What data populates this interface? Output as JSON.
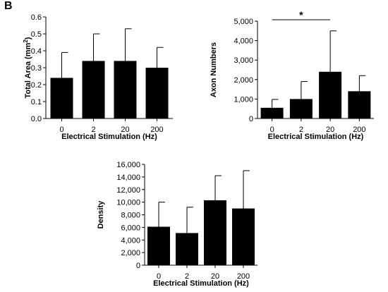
{
  "figure": {
    "panel_label": "B"
  },
  "chart_data": [
    {
      "type": "bar",
      "categories": [
        "0",
        "2",
        "20",
        "200"
      ],
      "values": [
        0.24,
        0.34,
        0.34,
        0.3
      ],
      "errors": [
        0.15,
        0.16,
        0.19,
        0.12
      ],
      "xlabel": "Electrical Stimulation (Hz)",
      "ylabel": "Total Area (mm",
      "ylabel_sup": "2",
      "ylabel_suffix": ")",
      "ylim": [
        0,
        0.6
      ],
      "yticks": [
        "0.0",
        "0.1",
        "0.2",
        "0.3",
        "0.4",
        "0.5",
        "0.6"
      ],
      "bar_color": "#000000",
      "grid": false
    },
    {
      "type": "bar",
      "categories": [
        "0",
        "2",
        "20",
        "200"
      ],
      "values": [
        550,
        1000,
        2400,
        1400
      ],
      "errors": [
        430,
        900,
        2100,
        800
      ],
      "xlabel": "Electrical Stimulation (Hz)",
      "ylabel": "Axon Numbers",
      "ylim": [
        0,
        5000
      ],
      "yticks": [
        "0",
        "1,000",
        "2,000",
        "3,000",
        "4,000",
        "5,000"
      ],
      "bar_color": "#000000",
      "grid": false,
      "annotation": {
        "text": "*",
        "from_category": "0",
        "to_category": "20"
      }
    },
    {
      "type": "bar",
      "categories": [
        "0",
        "2",
        "20",
        "200"
      ],
      "values": [
        6100,
        5100,
        10300,
        9000
      ],
      "errors": [
        3900,
        4100,
        3900,
        6000
      ],
      "xlabel": "Electrical Stimulation (Hz)",
      "ylabel": "Density",
      "ylim": [
        0,
        16000
      ],
      "yticks": [
        "0",
        "2,000",
        "4,000",
        "6,000",
        "8,000",
        "10,000",
        "12,000",
        "14,000",
        "16,000"
      ],
      "bar_color": "#000000",
      "grid": false
    }
  ]
}
